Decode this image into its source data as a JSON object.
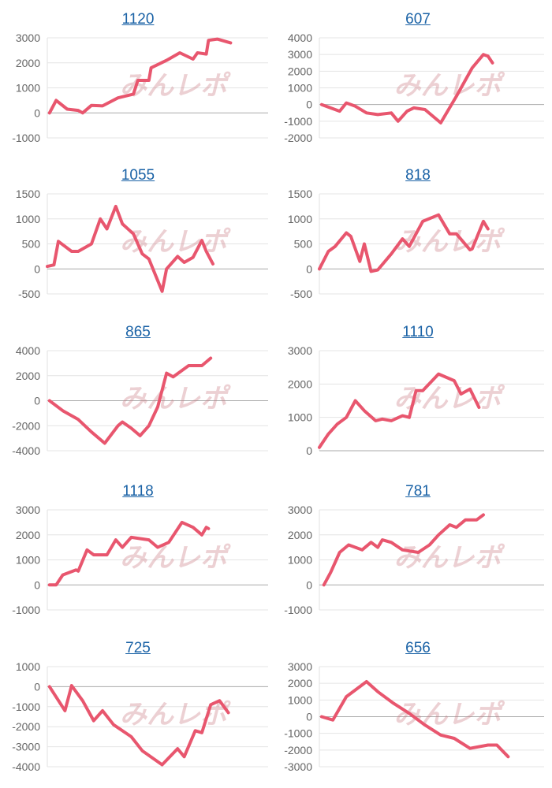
{
  "watermark": "みんレポ",
  "line_color": "#e8566e",
  "chart_data": [
    {
      "type": "line",
      "title": "1120",
      "ylim": [
        -1000,
        3000
      ],
      "yticks": [
        3000,
        2000,
        1000,
        0,
        -1000
      ],
      "xlim": [
        0,
        100
      ],
      "grid": true,
      "x": [
        1,
        4,
        9,
        14,
        16,
        20,
        25,
        32,
        39,
        41,
        46,
        47,
        54,
        60,
        66,
        68,
        72,
        73,
        77,
        83
      ],
      "y": [
        0,
        500,
        150,
        100,
        0,
        300,
        280,
        600,
        750,
        1300,
        1300,
        1800,
        2100,
        2400,
        2150,
        2400,
        2350,
        2900,
        2950,
        2800
      ]
    },
    {
      "type": "line",
      "title": "607",
      "ylim": [
        -2000,
        4000
      ],
      "yticks": [
        4000,
        3000,
        2000,
        1000,
        0,
        -1000,
        -2000
      ],
      "xlim": [
        0,
        100
      ],
      "grid": true,
      "x": [
        1,
        9,
        12,
        16,
        21,
        26,
        32,
        35,
        39,
        42,
        47,
        54,
        61,
        68,
        73,
        75,
        77
      ],
      "y": [
        0,
        -400,
        100,
        -100,
        -500,
        -600,
        -500,
        -1000,
        -400,
        -200,
        -300,
        -1100,
        500,
        2200,
        3000,
        2900,
        2500
      ]
    },
    {
      "type": "line",
      "title": "1055",
      "ylim": [
        -500,
        1500
      ],
      "yticks": [
        1500,
        1000,
        500,
        0,
        -500
      ],
      "xlim": [
        0,
        100
      ],
      "grid": true,
      "x": [
        0,
        3,
        5,
        11,
        14,
        20,
        24,
        27,
        31,
        34,
        39,
        43,
        46,
        52,
        54,
        59,
        62,
        66,
        70,
        72,
        75
      ],
      "y": [
        50,
        80,
        550,
        350,
        350,
        500,
        1000,
        800,
        1250,
        900,
        700,
        300,
        200,
        -450,
        0,
        250,
        130,
        230,
        570,
        350,
        100
      ]
    },
    {
      "type": "line",
      "title": "818",
      "ylim": [
        -500,
        1500
      ],
      "yticks": [
        1500,
        1000,
        500,
        0,
        -500
      ],
      "xlim": [
        0,
        100
      ],
      "grid": true,
      "x": [
        0,
        4,
        7,
        12,
        14,
        18,
        20,
        23,
        26,
        32,
        37,
        40,
        46,
        53,
        58,
        61,
        67,
        68,
        73,
        75
      ],
      "y": [
        0,
        350,
        450,
        720,
        650,
        150,
        500,
        -50,
        -20,
        300,
        600,
        450,
        950,
        1080,
        700,
        700,
        380,
        400,
        950,
        800
      ]
    },
    {
      "type": "line",
      "title": "865",
      "ylim": [
        -4000,
        4000
      ],
      "yticks": [
        4000,
        2000,
        0,
        -2000,
        -4000
      ],
      "xlim": [
        0,
        100
      ],
      "grid": true,
      "x": [
        1,
        7,
        14,
        20,
        26,
        32,
        34,
        38,
        42,
        46,
        50,
        54,
        57,
        64,
        70,
        74
      ],
      "y": [
        0,
        -800,
        -1500,
        -2500,
        -3400,
        -2000,
        -1700,
        -2200,
        -2800,
        -2000,
        -500,
        2200,
        1900,
        2800,
        2800,
        3400
      ]
    },
    {
      "type": "line",
      "title": "1110",
      "ylim": [
        0,
        3000
      ],
      "yticks": [
        3000,
        2000,
        1000,
        0
      ],
      "xlim": [
        0,
        100
      ],
      "grid": true,
      "x": [
        0,
        4,
        8,
        12,
        16,
        20,
        25,
        28,
        32,
        37,
        40,
        43,
        46,
        53,
        60,
        63,
        67,
        71
      ],
      "y": [
        100,
        500,
        800,
        1000,
        1500,
        1200,
        900,
        950,
        900,
        1050,
        1000,
        1800,
        1800,
        2300,
        2100,
        1700,
        1850,
        1300
      ]
    },
    {
      "type": "line",
      "title": "1118",
      "ylim": [
        -1000,
        3000
      ],
      "yticks": [
        3000,
        2000,
        1000,
        0,
        -1000
      ],
      "xlim": [
        0,
        100
      ],
      "grid": true,
      "x": [
        1,
        4,
        7,
        13,
        14,
        18,
        21,
        27,
        31,
        34,
        38,
        46,
        50,
        55,
        61,
        66,
        70,
        72,
        73
      ],
      "y": [
        0,
        0,
        400,
        600,
        550,
        1400,
        1200,
        1200,
        1800,
        1500,
        1900,
        1800,
        1500,
        1700,
        2500,
        2300,
        2000,
        2300,
        2250
      ]
    },
    {
      "type": "line",
      "title": "781",
      "ylim": [
        -1000,
        3000
      ],
      "yticks": [
        3000,
        2000,
        1000,
        0,
        -1000
      ],
      "xlim": [
        0,
        100
      ],
      "grid": true,
      "x": [
        2,
        5,
        9,
        13,
        19,
        23,
        26,
        28,
        32,
        37,
        44,
        49,
        53,
        58,
        61,
        65,
        70,
        73
      ],
      "y": [
        0,
        500,
        1300,
        1600,
        1400,
        1700,
        1500,
        1800,
        1700,
        1400,
        1300,
        1600,
        2000,
        2400,
        2300,
        2600,
        2600,
        2800
      ]
    },
    {
      "type": "line",
      "title": "725",
      "ylim": [
        -4000,
        1000
      ],
      "yticks": [
        1000,
        0,
        -1000,
        -2000,
        -3000,
        -4000
      ],
      "xlim": [
        0,
        100
      ],
      "grid": true,
      "x": [
        1,
        8,
        11,
        16,
        21,
        25,
        30,
        38,
        43,
        52,
        59,
        62,
        67,
        70,
        74,
        78,
        82
      ],
      "y": [
        0,
        -1200,
        50,
        -700,
        -1700,
        -1200,
        -1900,
        -2500,
        -3200,
        -3900,
        -3100,
        -3500,
        -2200,
        -2300,
        -900,
        -700,
        -1300
      ]
    },
    {
      "type": "line",
      "title": "656",
      "ylim": [
        -3000,
        3000
      ],
      "yticks": [
        3000,
        2000,
        1000,
        0,
        -1000,
        -2000,
        -3000
      ],
      "xlim": [
        0,
        100
      ],
      "grid": true,
      "x": [
        1,
        6,
        12,
        21,
        26,
        33,
        40,
        47,
        54,
        60,
        67,
        75,
        79,
        84
      ],
      "y": [
        0,
        -200,
        1200,
        2100,
        1500,
        800,
        200,
        -500,
        -1100,
        -1300,
        -1900,
        -1700,
        -1700,
        -2400
      ]
    }
  ]
}
